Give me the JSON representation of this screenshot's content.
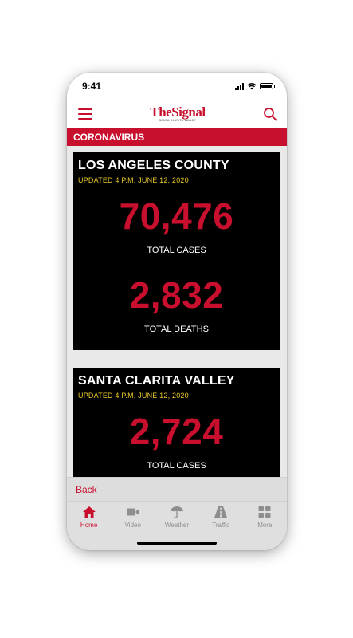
{
  "status_bar": {
    "time": "9:41"
  },
  "header": {
    "logo_text": "TheSignal",
    "logo_subtitle": "SANTA CLARITA VALLEY"
  },
  "section": {
    "title": "CORONAVIRUS"
  },
  "cards": [
    {
      "title": "LOS ANGELES COUNTY",
      "updated": "UPDATED 4 P.M. JUNE 12, 2020",
      "cases_value": "70,476",
      "cases_label": "TOTAL CASES",
      "deaths_value": "2,832",
      "deaths_label": "TOTAL DEATHS"
    },
    {
      "title": "SANTA CLARITA VALLEY",
      "updated": "UPDATED 4 P.M. JUNE 12, 2020",
      "cases_value": "2,724",
      "cases_label": "TOTAL CASES"
    }
  ],
  "back_bar": {
    "label": "Back"
  },
  "tabs": [
    {
      "label": "Home",
      "icon": "home-icon",
      "active": true
    },
    {
      "label": "Video",
      "icon": "video-camera-icon",
      "active": false
    },
    {
      "label": "Weather",
      "icon": "umbrella-icon",
      "active": false
    },
    {
      "label": "Traffic",
      "icon": "road-icon",
      "active": false
    },
    {
      "label": "More",
      "icon": "grid-icon",
      "active": false
    }
  ],
  "colors": {
    "brand_red": "#c8102e",
    "card_background": "#000000",
    "updated_yellow": "#e8c929",
    "tab_inactive": "#8e8e8e"
  }
}
